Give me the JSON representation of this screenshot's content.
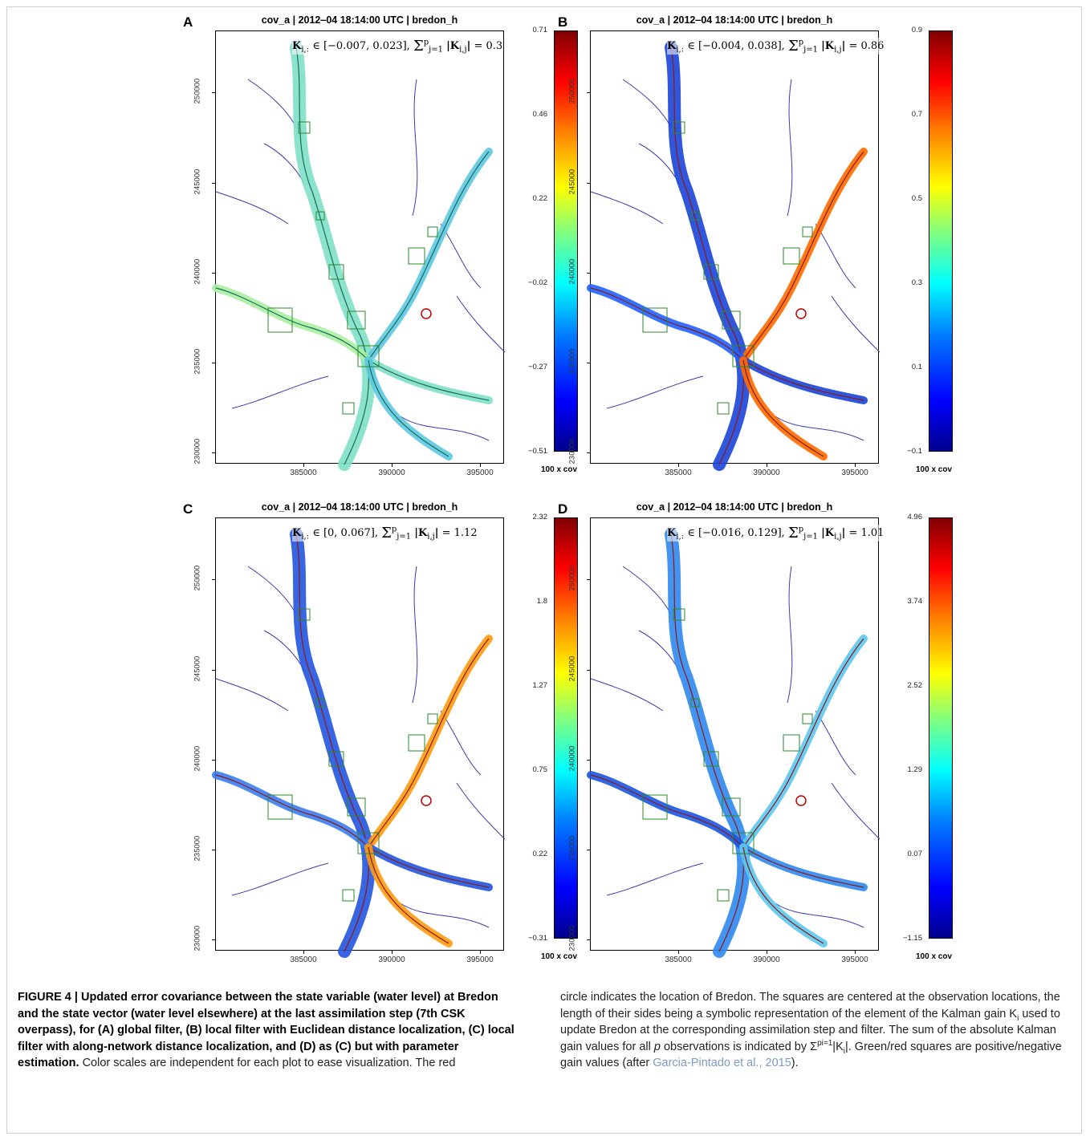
{
  "panels": [
    {
      "letter": "A",
      "title": "cov_a | 2012‒04 18:14:00 UTC | bredon_h",
      "range": "∈ [−0.007, 0.023],",
      "sum": "= 0.3",
      "colorbar": [
        "0.71",
        "0.46",
        "0.22",
        "−0.02",
        "−0.27",
        "−0.51"
      ],
      "cbar_unit": "100 x cov"
    },
    {
      "letter": "B",
      "title": "cov_a | 2012‒04 18:14:00 UTC | bredon_h",
      "range": "∈ [−0.004, 0.038],",
      "sum": "= 0.86",
      "colorbar": [
        "0.9",
        "0.7",
        "0.5",
        "0.3",
        "0.1",
        "−0.1"
      ],
      "cbar_unit": "100 x cov"
    },
    {
      "letter": "C",
      "title": "cov_a | 2012‒04 18:14:00 UTC | bredon_h",
      "range": "∈ [0, 0.067],",
      "sum": "= 1.12",
      "colorbar": [
        "2.32",
        "1.8",
        "1.27",
        "0.75",
        "0.22",
        "−0.31"
      ],
      "cbar_unit": "100 x cov"
    },
    {
      "letter": "D",
      "title": "cov_a | 2012‒04 18:14:00 UTC | bredon_h",
      "range": "∈ [−0.016, 0.129],",
      "sum": "= 1.01",
      "colorbar": [
        "4.96",
        "3.74",
        "2.52",
        "1.29",
        "0.07",
        "−1.15"
      ],
      "cbar_unit": "100 x cov"
    }
  ],
  "axes": {
    "y_ticks": [
      "250000",
      "245000",
      "240000",
      "235000",
      "230000"
    ],
    "x_ticks": [
      "385000",
      "390000",
      "395000"
    ]
  },
  "annotation": {
    "k_symbol": "K",
    "k_sub": "i,:",
    "sum_top": "p",
    "sum_bottom": "j=1",
    "k_abs": "|K",
    "k_abs_sub": "i,j",
    "k_abs_end": "|"
  },
  "caption": {
    "figure_label": "FIGURE 4 | Updated error covariance between the state variable (water level) at Bredon and the state vector (water level elsewhere) at the last assimilation step (7th CSK overpass), for (A) global filter, (B) local filter with Euclidean distance localization, (C) local filter with along-network distance localization, and (D) as (C) but with parameter estimation.",
    "text_left": " Color scales are independent for each plot to ease visualization. The red",
    "text_right_1": "circle indicates the location of Bredon. The squares are centered at the observation locations, the length of their sides being a symbolic representation of the element of the Kalman gain K",
    "k_sub": "i",
    "text_right_2": " used to update Bredon at the corresponding assimilation step and filter. The sum of the absolute Kalman gain values for all ",
    "p": "p",
    "text_right_3": " observations is indicated by Σ",
    "sigma_sup": "pi=1",
    "text_right_4": "|K",
    "k_sub2": "i",
    "text_right_5": "|. Green/red squares are positive/negative gain values (after ",
    "ref": "Garcia-Pintado et al., 2015",
    "text_right_end": ")."
  }
}
